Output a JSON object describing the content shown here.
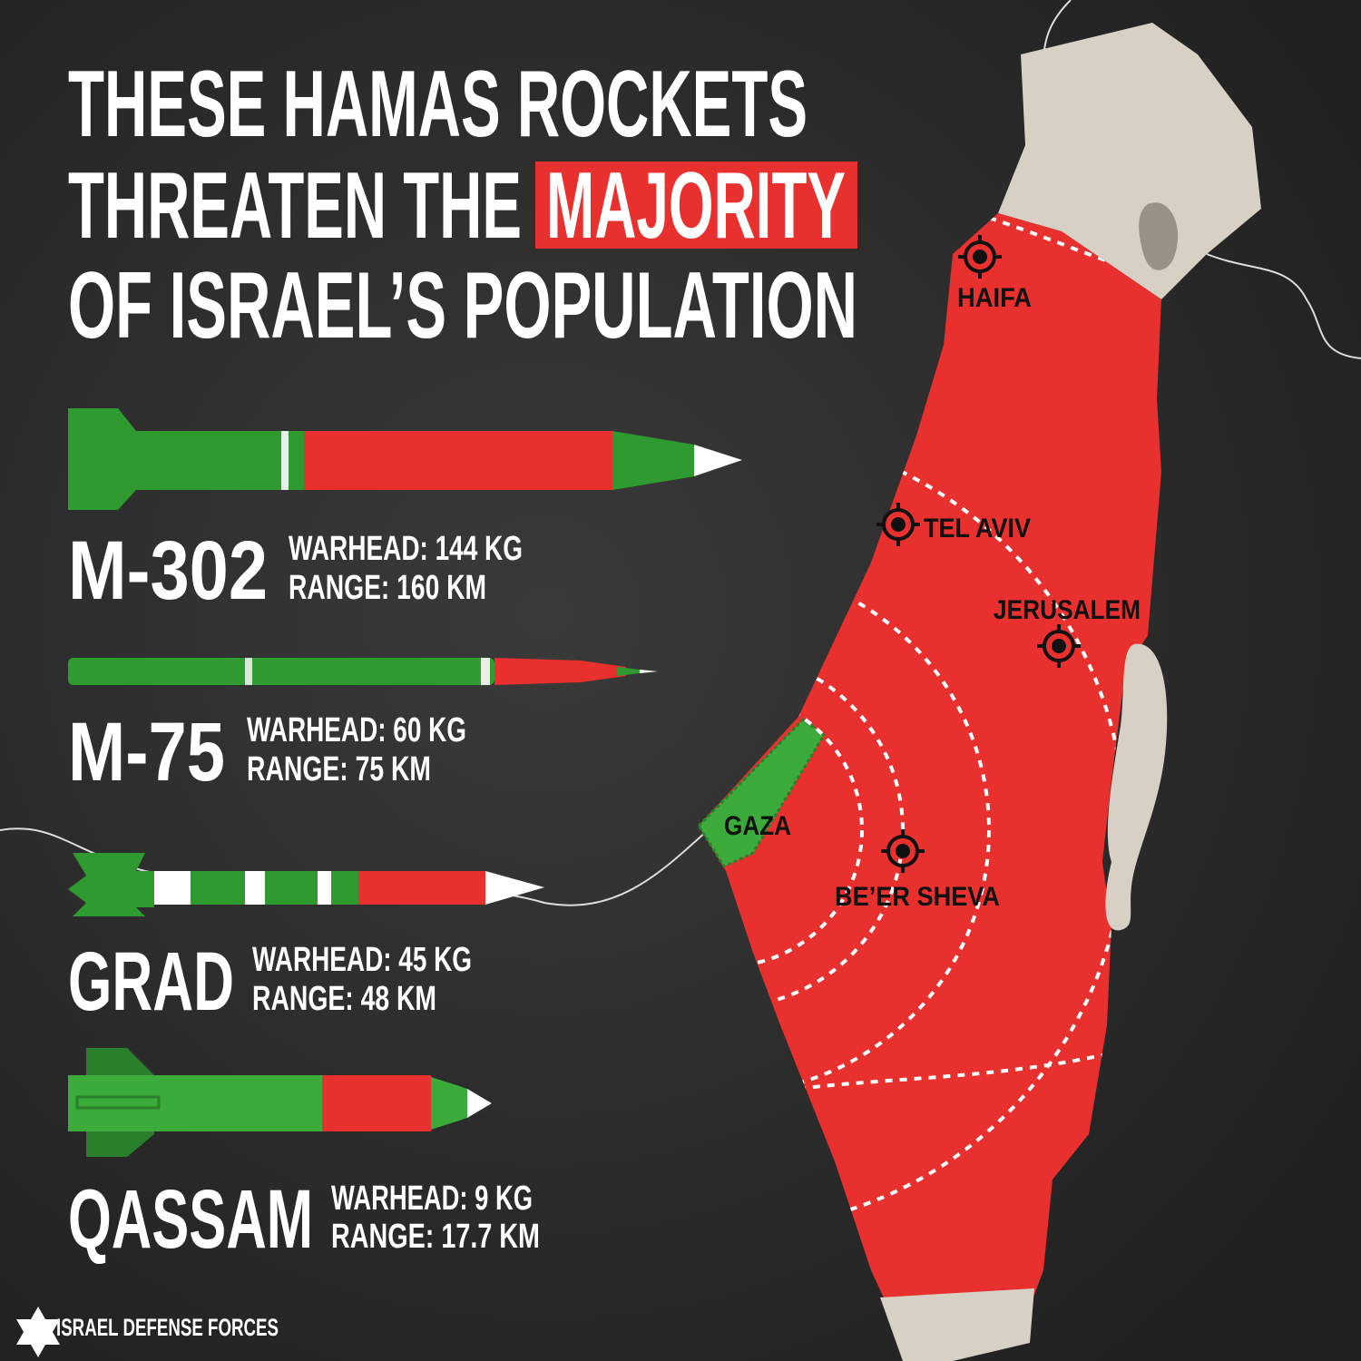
{
  "header": {
    "line1": "THESE HAMAS ROCKETS",
    "line2": "THREATEN THE",
    "highlight": "MAJORITY",
    "line3": "OF ISRAEL’S POPULATION"
  },
  "rockets": [
    {
      "name": "M-302",
      "warhead": "WARHEAD: 144 KG",
      "range": "RANGE: 160 KM"
    },
    {
      "name": "M-75",
      "warhead": "WARHEAD: 60 KG",
      "range": "RANGE: 75 KM"
    },
    {
      "name": "GRAD",
      "warhead": "WARHEAD: 45 KG",
      "range": "RANGE: 48 KM"
    },
    {
      "name": "QASSAM",
      "warhead": "WARHEAD: 9 KG",
      "range": "RANGE: 17.7 KM"
    }
  ],
  "map": {
    "cities": [
      "HAIFA",
      "TEL AVIV",
      "JERUSALEM",
      "GAZA",
      "BE’ER SHEVA"
    ]
  },
  "footer": {
    "org": "ISRAEL DEFENSE FORCES"
  }
}
